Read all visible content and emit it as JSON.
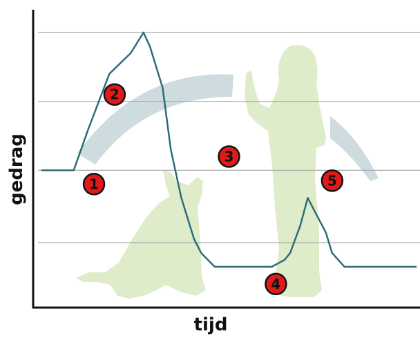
{
  "chart_data": {
    "type": "line",
    "title": "",
    "xlabel": "tijd",
    "ylabel": "gedrag",
    "grid": true,
    "colors": {
      "line": "#2e6b78",
      "grid": "#a8a8a8",
      "axis": "#111111",
      "marker_fill": "#e01a1a",
      "marker_stroke": "#111111",
      "silhouette": "#dfecc9",
      "arc": "#cfdcdf"
    },
    "series": [
      {
        "x": [
          0,
          8.6,
          12.5,
          18.1,
          23.8,
          27.2,
          28.9,
          32.3,
          34.5,
          37.3,
          40.7,
          42.6,
          46.2,
          51.2,
          57.7,
          61.4,
          64.8,
          66.3,
          69.0,
          71.0,
          72.9,
          75.8,
          77.5,
          80.8,
          85.7,
          100
        ],
        "y": [
          2.0,
          2.0,
          2.6,
          3.4,
          3.7,
          4.0,
          3.8,
          3.2,
          2.3,
          1.6,
          1.0,
          0.8,
          0.6,
          0.6,
          0.6,
          0.6,
          0.7,
          0.8,
          1.2,
          1.6,
          1.4,
          1.1,
          0.8,
          0.6,
          0.6,
          0.6
        ]
      }
    ],
    "xlim": [
      0,
      100
    ],
    "ylim": [
      0,
      4
    ],
    "y_gridlines": [
      0.95,
      2.0,
      3.0,
      4.0
    ],
    "markers": [
      {
        "label": "1",
        "x": 14.0,
        "y": 1.8
      },
      {
        "label": "2",
        "x": 19.5,
        "y": 3.1
      },
      {
        "label": "3",
        "x": 50.0,
        "y": 2.2
      },
      {
        "label": "4",
        "x": 62.5,
        "y": 0.35
      },
      {
        "label": "5",
        "x": 77.5,
        "y": 1.85
      }
    ],
    "icons": [
      "dog-silhouette-icon",
      "trainer-silhouette-icon"
    ]
  }
}
